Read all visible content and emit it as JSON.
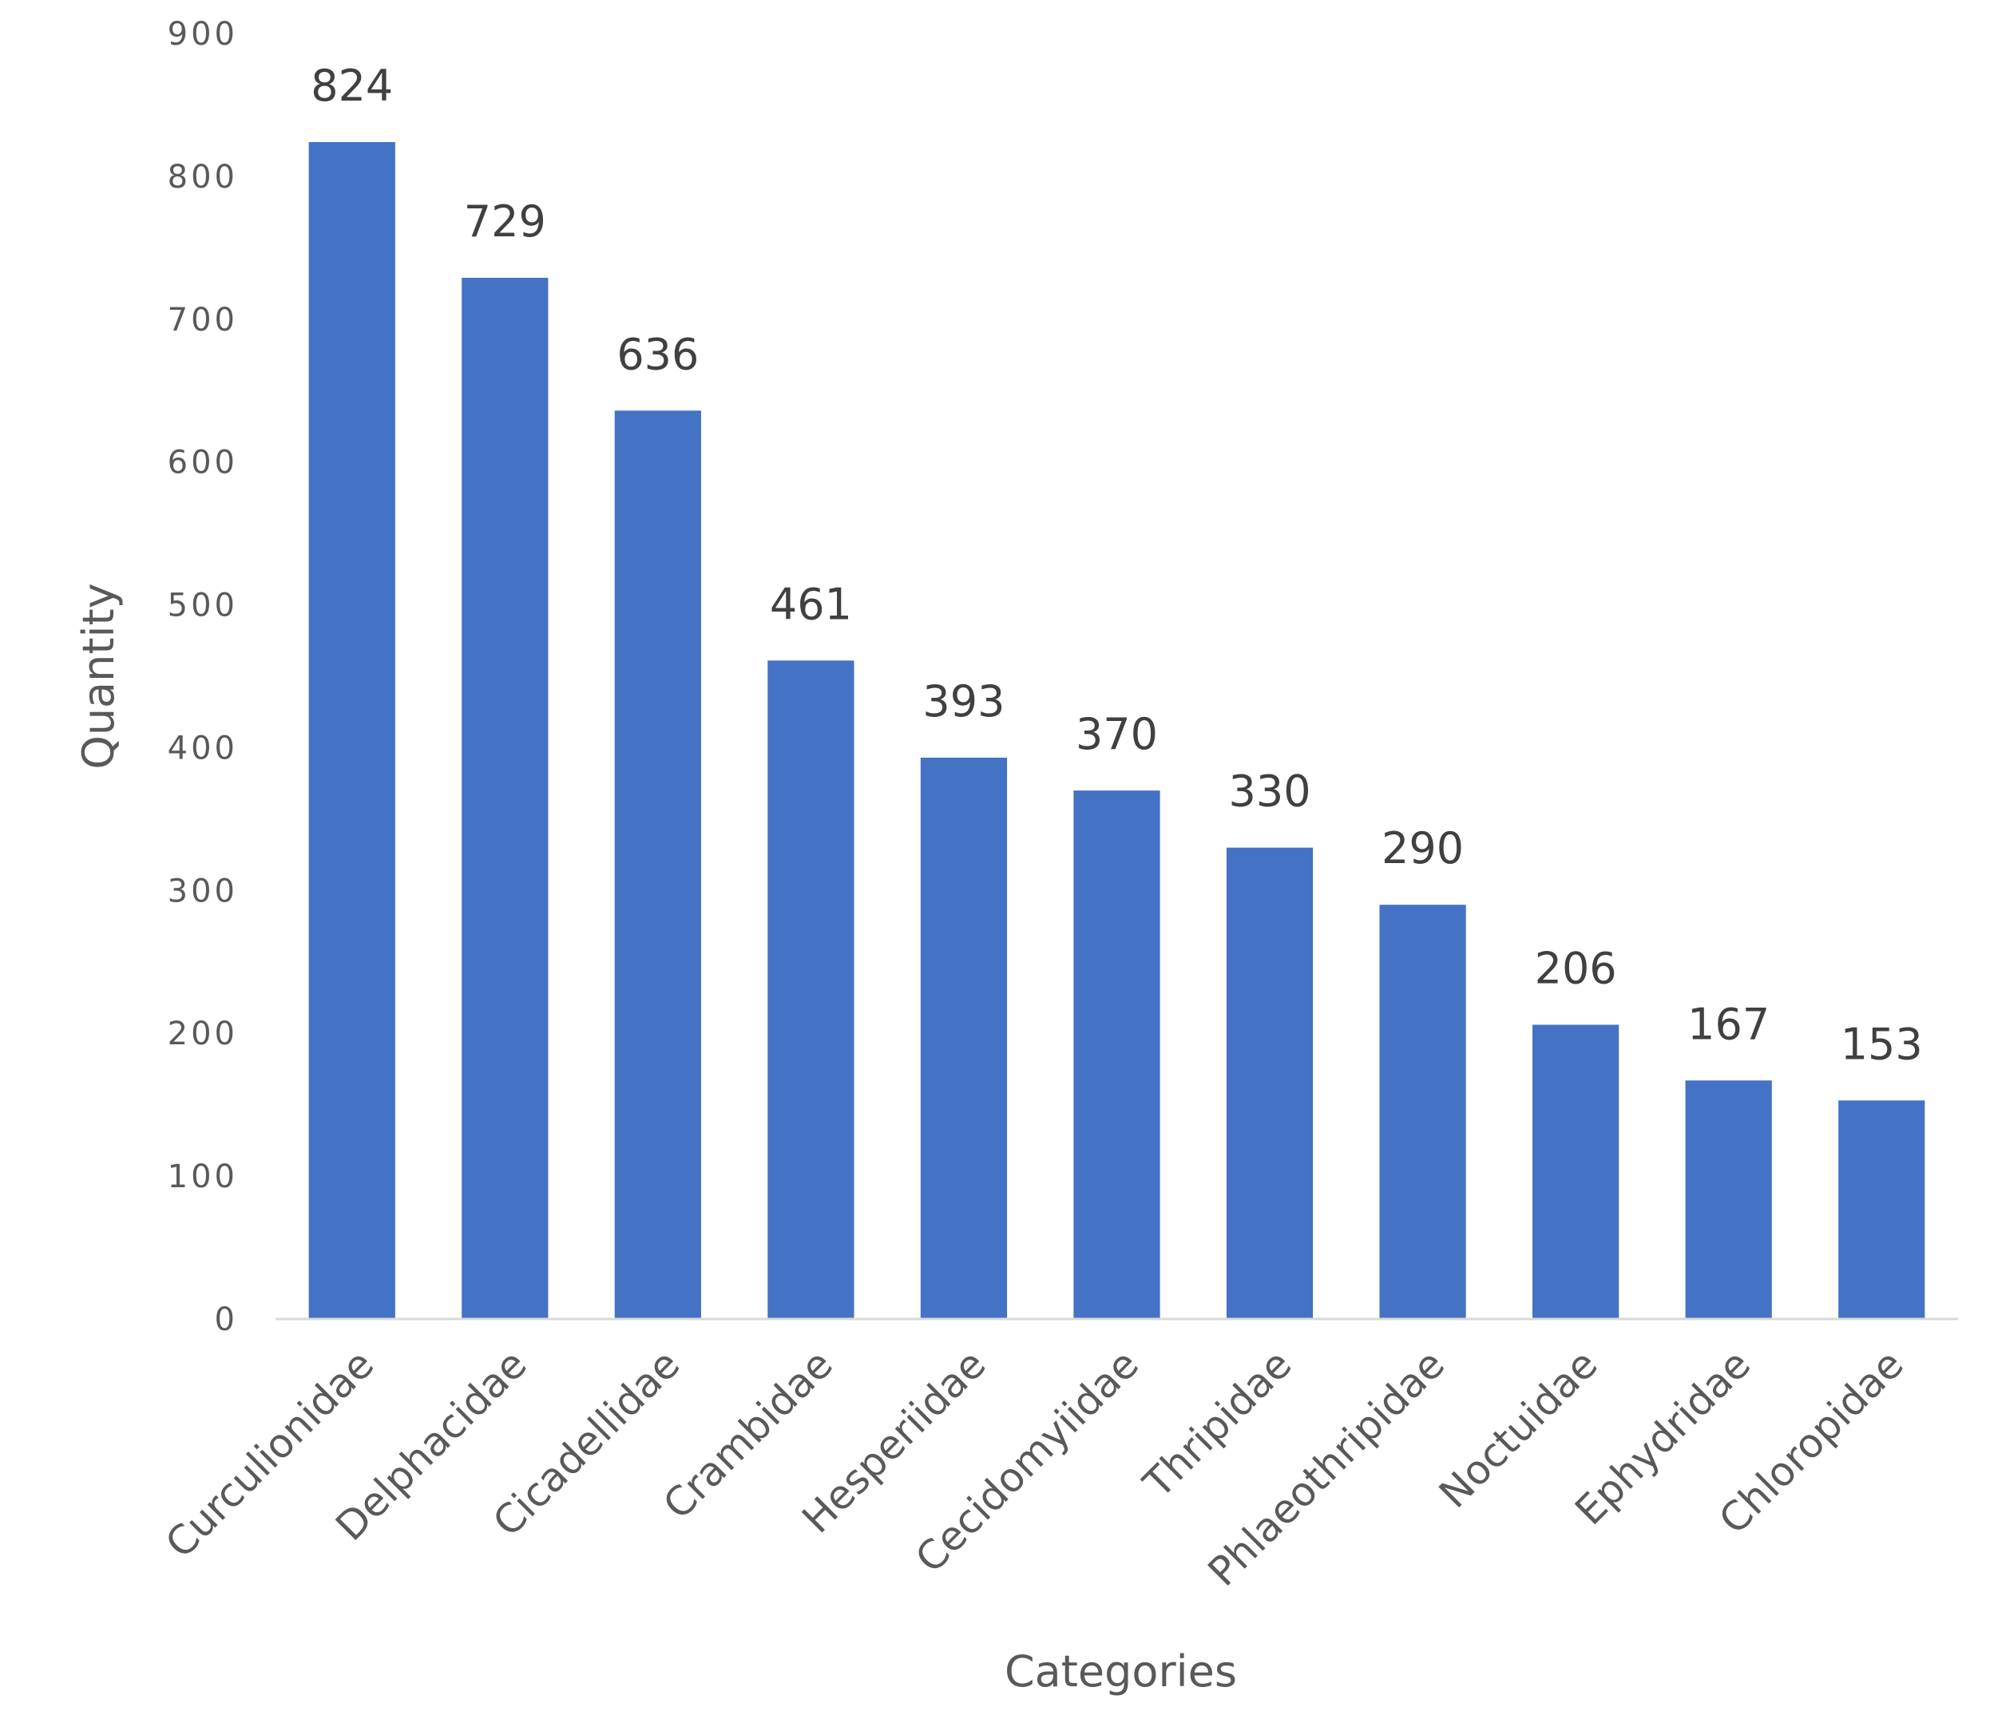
{
  "chart_data": {
    "type": "bar",
    "title": "",
    "xlabel": "Categories",
    "ylabel": "Quantity",
    "ylim": [
      0,
      900
    ],
    "yticks": [
      0,
      100,
      200,
      300,
      400,
      500,
      600,
      700,
      800,
      900
    ],
    "grid": false,
    "legend": "none",
    "bar_color": "#4472C4",
    "categories": [
      "Curculionidae",
      "Delphacidae",
      "Cicadellidae",
      "Crambidae",
      "Hesperiidae",
      "Cecidomyiidae",
      "Thripidae",
      "Phlaeothripidae",
      "Noctuidae",
      "Ephydridae",
      "Chloropidae"
    ],
    "values": [
      824,
      729,
      636,
      461,
      393,
      370,
      330,
      290,
      206,
      167,
      153
    ],
    "data_labels": [
      "824",
      "729",
      "636",
      "461",
      "393",
      "370",
      "330",
      "290",
      "206",
      "167",
      "153"
    ]
  }
}
